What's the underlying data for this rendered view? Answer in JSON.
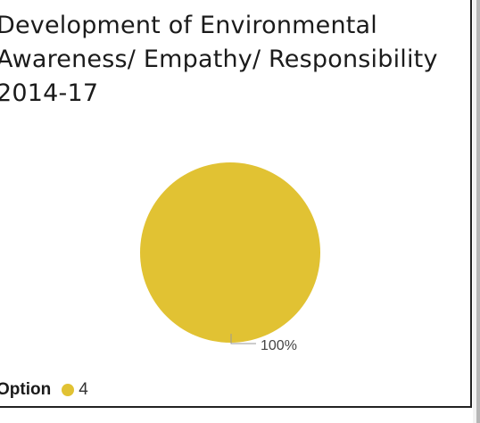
{
  "window": {
    "title": "Development of Environmental Awareness/ Empathy/ Responsibility 2014-17"
  },
  "chart_data": {
    "type": "pie",
    "title": "Development of Environmental Awareness/ Empathy/ Responsibility 2014-17",
    "legend_title": "Option",
    "legend_position": "bottom-left",
    "slices": [
      {
        "label": "4",
        "value": 100,
        "data_label": "100%",
        "color": "#E1C233"
      }
    ]
  },
  "colors": {
    "border": "#222222",
    "leader_line": "#9a9a9a",
    "text": "#1b1b1b",
    "scrollbar_track": "#f2f2f2",
    "scrollbar_thumb": "#b5b5b5"
  }
}
